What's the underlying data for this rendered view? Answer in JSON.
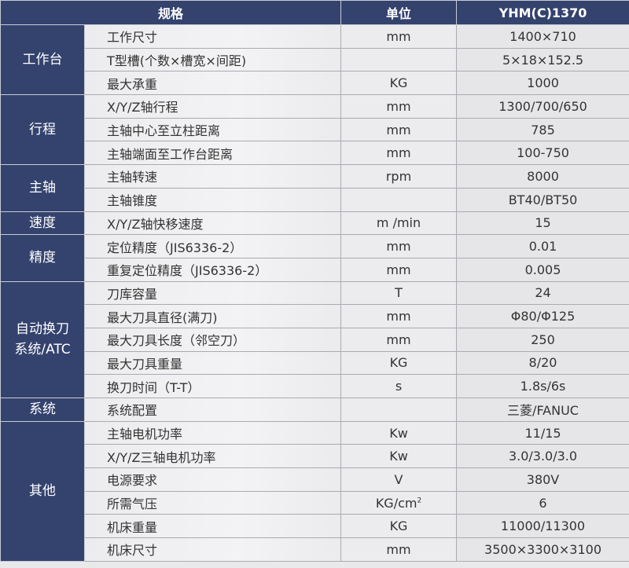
{
  "header": {
    "spec": "规格",
    "unit": "单位",
    "model": "YHM(C)1370"
  },
  "groups": [
    {
      "category": "工作台",
      "rows": [
        {
          "name": "工作尺寸",
          "unit": "mm",
          "value": "1400×710"
        },
        {
          "name": "T型槽(个数×槽宽×间距)",
          "unit": "",
          "value": "5×18×152.5"
        },
        {
          "name": "最大承重",
          "unit": "KG",
          "value": "1000"
        }
      ]
    },
    {
      "category": "行程",
      "rows": [
        {
          "name": "X/Y/Z轴行程",
          "unit": "mm",
          "value": "1300/700/650"
        },
        {
          "name": "主轴中心至立柱距离",
          "unit": "mm",
          "value": "785"
        },
        {
          "name": "主轴端面至工作台距离",
          "unit": "mm",
          "value": "100-750"
        }
      ]
    },
    {
      "category": "主轴",
      "rows": [
        {
          "name": "主轴转速",
          "unit": "rpm",
          "value": "8000"
        },
        {
          "name": "主轴锥度",
          "unit": "",
          "value": "BT40/BT50"
        }
      ]
    },
    {
      "category": "速度",
      "rows": [
        {
          "name": "X/Y/Z轴快移速度",
          "unit": "m /min",
          "value": "15"
        }
      ]
    },
    {
      "category": "精度",
      "rows": [
        {
          "name": "定位精度（JIS6336-2）",
          "unit": "mm",
          "value": "0.01"
        },
        {
          "name": "重复定位精度（JIS6336-2）",
          "unit": "mm",
          "value": "0.005"
        }
      ]
    },
    {
      "category": "自动换刀\n系统/ATC",
      "rows": [
        {
          "name": "刀库容量",
          "unit": "T",
          "value": "24"
        },
        {
          "name": "最大刀具直径(满刀)",
          "unit": "mm",
          "value": "Φ80/Φ125"
        },
        {
          "name": "最大刀具长度（邻空刀）",
          "unit": "mm",
          "value": "250"
        },
        {
          "name": "最大刀具重量",
          "unit": "KG",
          "value": "8/20"
        },
        {
          "name": "换刀时间（T-T）",
          "unit": "s",
          "value": "1.8s/6s"
        }
      ]
    },
    {
      "category": "系统",
      "rows": [
        {
          "name": "系统配置",
          "unit": "",
          "value": "三菱/FANUC"
        }
      ]
    },
    {
      "category": "其他",
      "rows": [
        {
          "name": "主轴电机功率",
          "unit": "Kw",
          "value": "11/15"
        },
        {
          "name": "X/Y/Z三轴电机功率",
          "unit": "Kw",
          "value": "3.0/3.0/3.0"
        },
        {
          "name": "电源要求",
          "unit": "V",
          "value": "380V"
        },
        {
          "name": "所需气压",
          "unit": "KG/cm",
          "unit_sup": "2",
          "value": "6"
        },
        {
          "name": "机床重量",
          "unit": "KG",
          "value": "11000/11300"
        },
        {
          "name": "机床尺寸",
          "unit": "mm",
          "value": "3500×3300×3100"
        }
      ]
    }
  ]
}
